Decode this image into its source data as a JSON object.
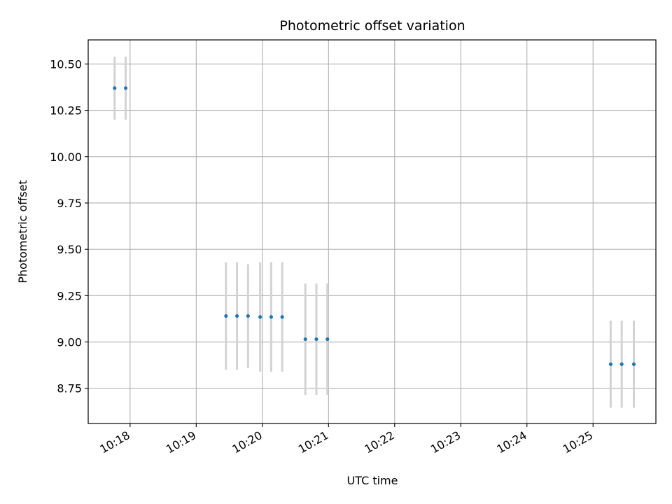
{
  "chart_data": {
    "type": "scatter",
    "title": "Photometric offset variation",
    "xlabel": "UTC time",
    "ylabel": "Photometric offset",
    "x_axis_kind": "time",
    "xlim": [
      "10:17:22",
      "10:25:57"
    ],
    "ylim": [
      8.56,
      10.63
    ],
    "x_ticks": [
      "10:18",
      "10:19",
      "10:20",
      "10:21",
      "10:22",
      "10:23",
      "10:24",
      "10:25"
    ],
    "y_ticks": [
      "8.75",
      "9.00",
      "9.25",
      "9.50",
      "9.75",
      "10.00",
      "10.25",
      "10.50"
    ],
    "grid": true,
    "point_color": "#1f77b4",
    "errorbar_color": "#d3d3d3",
    "points": [
      {
        "x": "10:17:46",
        "y": 10.37,
        "err": 0.17
      },
      {
        "x": "10:17:56",
        "y": 10.37,
        "err": 0.17
      },
      {
        "x": "10:19:27",
        "y": 9.14,
        "err": 0.29
      },
      {
        "x": "10:19:37",
        "y": 9.14,
        "err": 0.29
      },
      {
        "x": "10:19:47",
        "y": 9.14,
        "err": 0.28
      },
      {
        "x": "10:19:58",
        "y": 9.135,
        "err": 0.295
      },
      {
        "x": "10:20:08",
        "y": 9.135,
        "err": 0.295
      },
      {
        "x": "10:20:18",
        "y": 9.135,
        "err": 0.295
      },
      {
        "x": "10:20:39",
        "y": 9.015,
        "err": 0.3
      },
      {
        "x": "10:20:49",
        "y": 9.015,
        "err": 0.3
      },
      {
        "x": "10:20:59",
        "y": 9.015,
        "err": 0.3
      },
      {
        "x": "10:25:16",
        "y": 8.88,
        "err": 0.235
      },
      {
        "x": "10:25:26",
        "y": 8.88,
        "err": 0.235
      },
      {
        "x": "10:25:37",
        "y": 8.88,
        "err": 0.235
      }
    ]
  }
}
